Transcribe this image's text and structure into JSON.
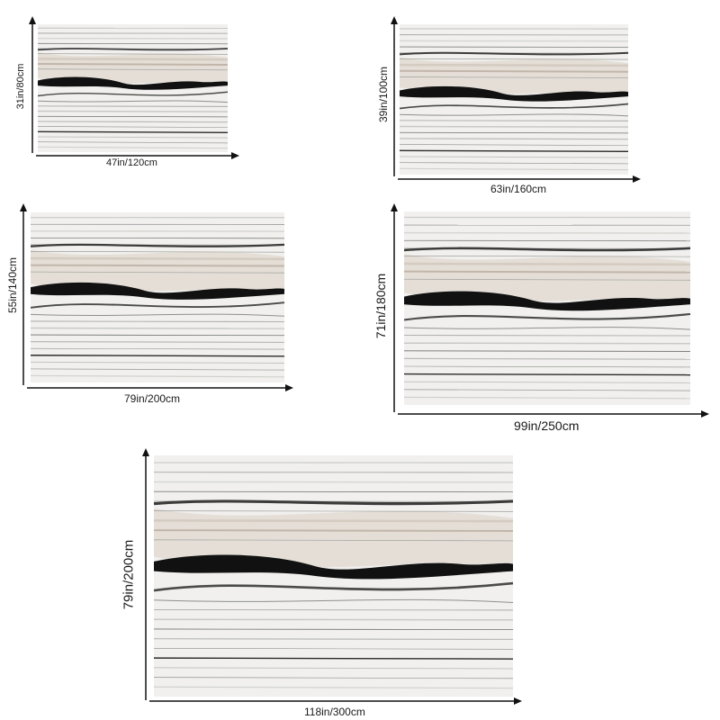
{
  "variants": [
    {
      "width_label": "47in/120cm",
      "height_label": "31in/80cm"
    },
    {
      "width_label": "63in/160cm",
      "height_label": "39in/100cm"
    },
    {
      "width_label": "79in/200cm",
      "height_label": "55in/140cm"
    },
    {
      "width_label": "99in/250cm",
      "height_label": "71in/180cm"
    },
    {
      "width_label": "118in/300cm",
      "height_label": "79in/200cm"
    }
  ],
  "colors": {
    "background": "#ffffff",
    "stack_light": "#f1f0ee",
    "stack_grey": "#8e8f8c",
    "stack_dark": "#111111",
    "stack_beige": "#d9cfc4",
    "arrow": "#111111"
  }
}
